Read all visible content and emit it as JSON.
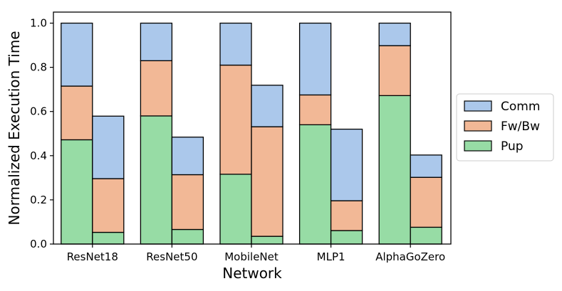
{
  "chart_data": {
    "type": "bar",
    "stacked": true,
    "grouped": true,
    "xlabel": "Network",
    "ylabel": "Normalized Execution Time",
    "ylim": [
      0,
      1.05
    ],
    "yticks": [
      "0.0",
      "0.2",
      "0.4",
      "0.6",
      "0.8",
      "1.0"
    ],
    "categories": [
      "ResNet18",
      "ResNet50",
      "MobileNet",
      "MLP1",
      "AlphaGoZero"
    ],
    "bars_per_category": 2,
    "legend": {
      "placement": "right-outside",
      "entries": [
        "Comm",
        "Fw/Bw",
        "Pup"
      ]
    },
    "series": [
      {
        "name": "Pup",
        "color": "#97dca5",
        "values": [
          [
            0.472,
            0.053
          ],
          [
            0.58,
            0.066
          ],
          [
            0.316,
            0.035
          ],
          [
            0.54,
            0.061
          ],
          [
            0.672,
            0.076
          ]
        ]
      },
      {
        "name": "Fw/Bw",
        "color": "#f2b896",
        "values": [
          [
            0.243,
            0.243
          ],
          [
            0.25,
            0.248
          ],
          [
            0.494,
            0.496
          ],
          [
            0.135,
            0.135
          ],
          [
            0.226,
            0.226
          ]
        ]
      },
      {
        "name": "Comm",
        "color": "#abc8eb",
        "values": [
          [
            0.285,
            0.283
          ],
          [
            0.17,
            0.17
          ],
          [
            0.19,
            0.188
          ],
          [
            0.325,
            0.324
          ],
          [
            0.102,
            0.101
          ]
        ]
      }
    ]
  }
}
